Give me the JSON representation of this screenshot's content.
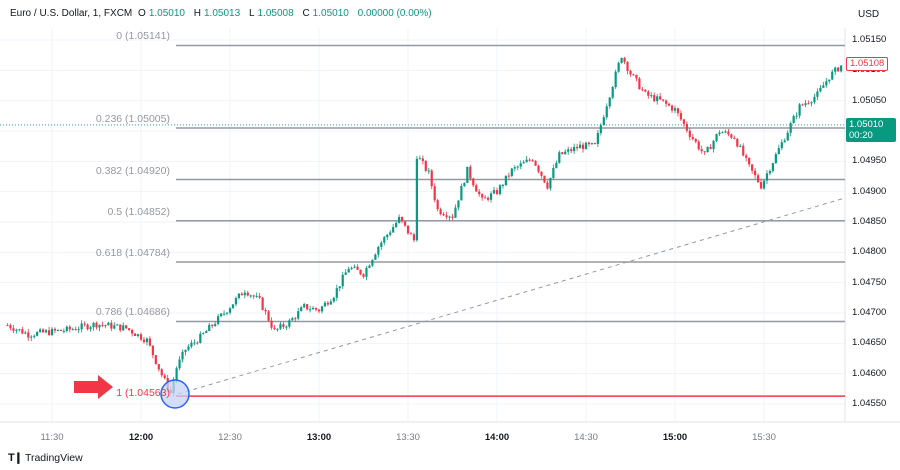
{
  "legend": {
    "symbol": "Euro / U.S. Dollar, 1, FXCM",
    "open_label": "O",
    "open": "1.05010",
    "high_label": "H",
    "high": "1.05013",
    "low_label": "L",
    "low": "1.05008",
    "close_label": "C",
    "close": "1.05010",
    "change": "0.00000 (0.00%)"
  },
  "axis": {
    "currency": "USD",
    "price_ticks": [
      "1.05150",
      "1.05100",
      "1.05050",
      "1.05000",
      "1.04950",
      "1.04900",
      "1.04850",
      "1.04800",
      "1.04750",
      "1.04700",
      "1.04650",
      "1.04600",
      "1.04550"
    ],
    "time_ticks": [
      {
        "label": "11:30",
        "major": false
      },
      {
        "label": "12:00",
        "major": true
      },
      {
        "label": "12:30",
        "major": false
      },
      {
        "label": "13:00",
        "major": true
      },
      {
        "label": "13:30",
        "major": false
      },
      {
        "label": "14:00",
        "major": true
      },
      {
        "label": "14:30",
        "major": false
      },
      {
        "label": "15:00",
        "major": true
      },
      {
        "label": "15:30",
        "major": false
      }
    ]
  },
  "price_tags": {
    "current": "1.05108",
    "last": "1.05010",
    "countdown": "00:20"
  },
  "fibonacci": [
    {
      "label": "0 (1.05141)",
      "level": 0,
      "price": 1.05141
    },
    {
      "label": "0.236 (1.05005)",
      "level": 0.236,
      "price": 1.05005
    },
    {
      "label": "0.382 (1.04920)",
      "level": 0.382,
      "price": 1.0492
    },
    {
      "label": "0.5 (1.04852)",
      "level": 0.5,
      "price": 1.04852
    },
    {
      "label": "0.618 (1.04784)",
      "level": 0.618,
      "price": 1.04784
    },
    {
      "label": "0.786 (1.04686)",
      "level": 0.786,
      "price": 1.04686
    },
    {
      "label": "1 (1.04563)",
      "level": 1,
      "price": 1.04563
    }
  ],
  "colors": {
    "up": "#089981",
    "down": "#f23645",
    "fib_line": "#9598a1",
    "fib_base": "#f23645",
    "grid": "#f0f3fa",
    "circle_fill": "#c5d3f5",
    "circle_stroke": "#2962ff"
  },
  "brand": "TradingView",
  "chart_data": {
    "type": "candlestick",
    "title": "Euro / U.S. Dollar, 1, FXCM",
    "xlabel": "",
    "ylabel": "USD",
    "ylim": [
      1.0453,
      1.0517
    ],
    "x_ticks": [
      "11:30",
      "12:00",
      "12:30",
      "13:00",
      "13:30",
      "14:00",
      "14:30",
      "15:00",
      "15:30"
    ],
    "y_ticks": [
      1.0455,
      1.046,
      1.0465,
      1.047,
      1.0475,
      1.048,
      1.0485,
      1.049,
      1.0495,
      1.05,
      1.0505,
      1.051,
      1.0515
    ],
    "fib_retracement": {
      "high": 1.05141,
      "low": 1.04563,
      "levels": [
        0,
        0.236,
        0.382,
        0.5,
        0.618,
        0.786,
        1
      ]
    },
    "path_waypoints": [
      {
        "time": "11:15",
        "price": 1.0468
      },
      {
        "time": "11:22",
        "price": 1.04665
      },
      {
        "time": "11:35",
        "price": 1.04672
      },
      {
        "time": "11:45",
        "price": 1.04682
      },
      {
        "time": "11:55",
        "price": 1.04675
      },
      {
        "time": "12:02",
        "price": 1.04655
      },
      {
        "time": "12:07",
        "price": 1.04598
      },
      {
        "time": "12:10",
        "price": 1.04568
      },
      {
        "time": "12:12",
        "price": 1.0461
      },
      {
        "time": "12:15",
        "price": 1.0464
      },
      {
        "time": "12:20",
        "price": 1.0466
      },
      {
        "time": "12:28",
        "price": 1.047
      },
      {
        "time": "12:35",
        "price": 1.04738
      },
      {
        "time": "12:40",
        "price": 1.0472
      },
      {
        "time": "12:45",
        "price": 1.0467
      },
      {
        "time": "12:50",
        "price": 1.04685
      },
      {
        "time": "12:55",
        "price": 1.0471
      },
      {
        "time": "13:00",
        "price": 1.04705
      },
      {
        "time": "13:05",
        "price": 1.0473
      },
      {
        "time": "13:10",
        "price": 1.04775
      },
      {
        "time": "13:15",
        "price": 1.04765
      },
      {
        "time": "13:20",
        "price": 1.0481
      },
      {
        "time": "13:27",
        "price": 1.04855
      },
      {
        "time": "13:32",
        "price": 1.0482
      },
      {
        "time": "13:33",
        "price": 1.0496
      },
      {
        "time": "13:37",
        "price": 1.0493
      },
      {
        "time": "13:40",
        "price": 1.0487
      },
      {
        "time": "13:45",
        "price": 1.0486
      },
      {
        "time": "13:50",
        "price": 1.04935
      },
      {
        "time": "13:55",
        "price": 1.04885
      },
      {
        "time": "14:00",
        "price": 1.049
      },
      {
        "time": "14:05",
        "price": 1.04935
      },
      {
        "time": "14:12",
        "price": 1.04955
      },
      {
        "time": "14:17",
        "price": 1.0491
      },
      {
        "time": "14:21",
        "price": 1.0496
      },
      {
        "time": "14:28",
        "price": 1.04975
      },
      {
        "time": "14:33",
        "price": 1.04975
      },
      {
        "time": "14:37",
        "price": 1.05045
      },
      {
        "time": "14:42",
        "price": 1.05125
      },
      {
        "time": "14:45",
        "price": 1.05095
      },
      {
        "time": "14:50",
        "price": 1.0506
      },
      {
        "time": "14:55",
        "price": 1.0505
      },
      {
        "time": "15:00",
        "price": 1.05035
      },
      {
        "time": "15:05",
        "price": 1.04995
      },
      {
        "time": "15:10",
        "price": 1.0496
      },
      {
        "time": "15:15",
        "price": 1.05
      },
      {
        "time": "15:20",
        "price": 1.0499
      },
      {
        "time": "15:25",
        "price": 1.0494
      },
      {
        "time": "15:29",
        "price": 1.0491
      },
      {
        "time": "15:35",
        "price": 1.0497
      },
      {
        "time": "15:42",
        "price": 1.0504
      },
      {
        "time": "15:48",
        "price": 1.0506
      },
      {
        "time": "15:52",
        "price": 1.0509
      },
      {
        "time": "15:56",
        "price": 1.05108
      }
    ],
    "last_close": 1.0501,
    "current_price": 1.05108
  }
}
